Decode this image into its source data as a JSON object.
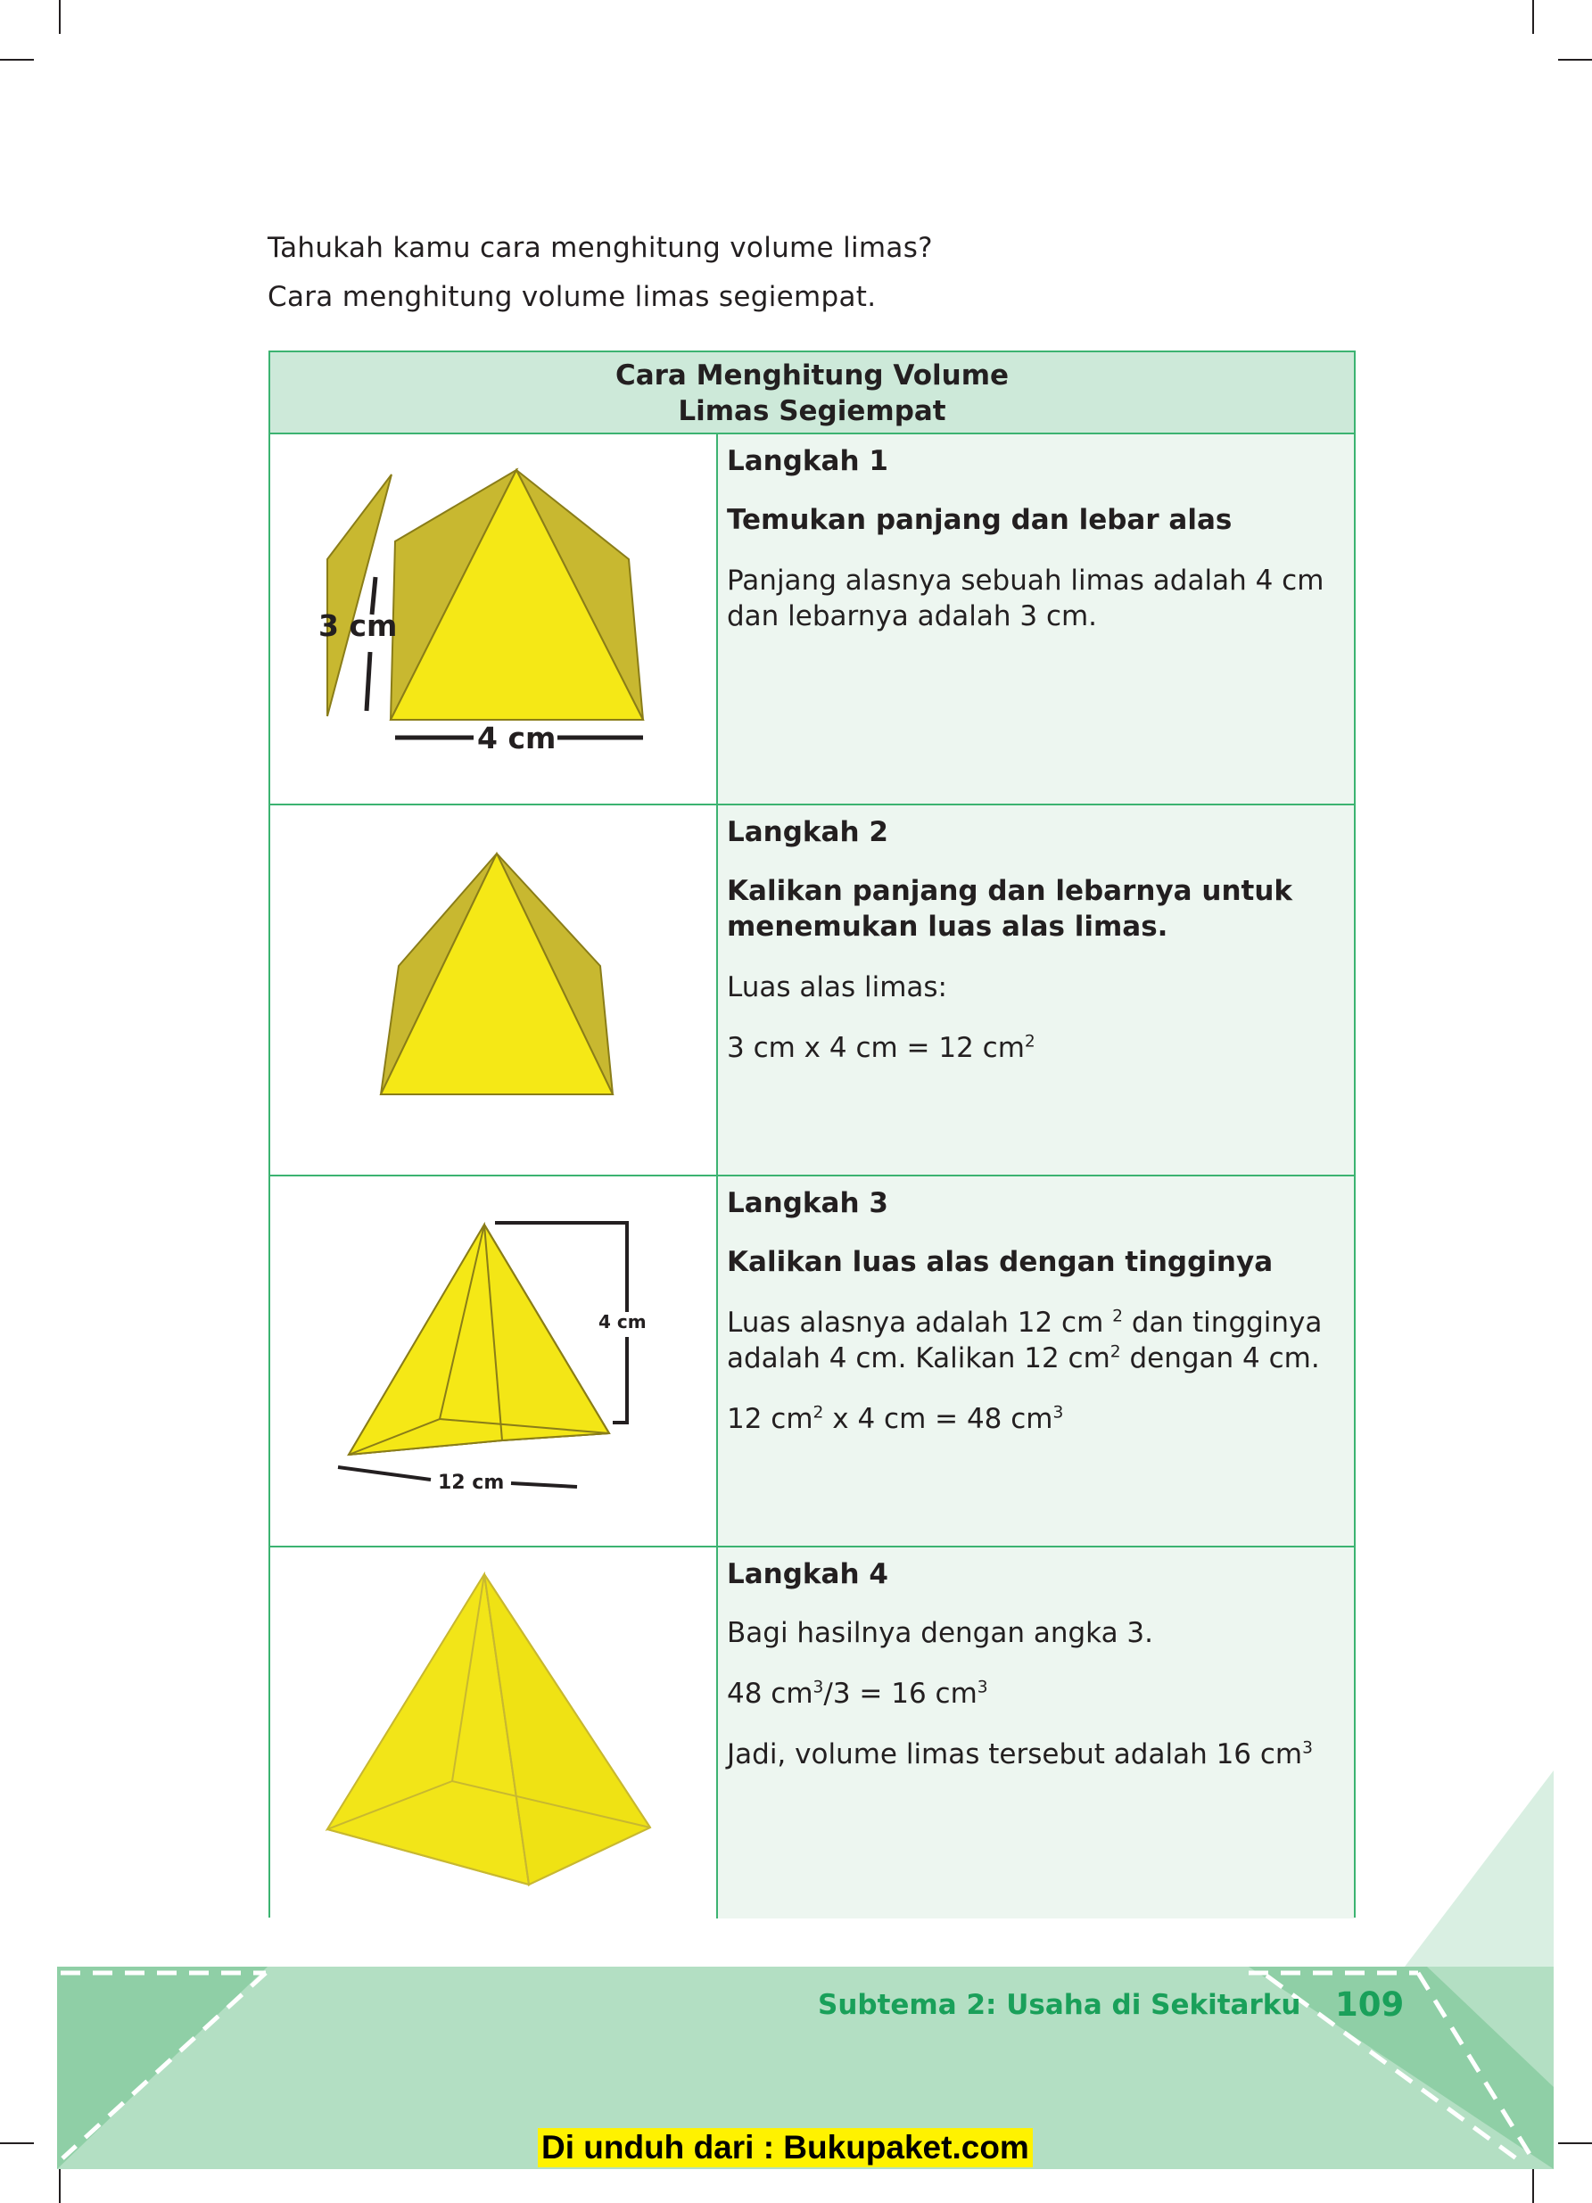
{
  "intro": {
    "question": "Tahukah kamu cara menghitung volume limas?",
    "subtitle": "Cara menghitung volume limas segiempat."
  },
  "table": {
    "header_line1": "Cara Menghitung Volume",
    "header_line2": "Limas Segiempat",
    "steps": [
      {
        "title": "Langkah 1",
        "heading": "Temukan panjang dan lebar alas",
        "body": [
          "Panjang alasnya sebuah limas adalah 4 cm dan lebarnya adalah 3 cm."
        ],
        "figure_labels": {
          "width": "4 cm",
          "depth": "3 cm"
        }
      },
      {
        "title": "Langkah 2",
        "heading": "Kalikan panjang dan lebarnya untuk menemukan luas alas limas.",
        "body": [
          "Luas alas limas:"
        ],
        "equation": {
          "text": "3 cm x 4 cm = 12 cm",
          "sup": "2"
        }
      },
      {
        "title": "Langkah 3",
        "heading": "Kalikan luas alas dengan tingginya",
        "body_a": "Luas alasnya adalah 12 cm ",
        "body_a_sup": "2",
        "body_b": " dan tingginya adalah 4 cm. Kalikan 12 cm",
        "body_b_sup": "2",
        "body_c": " dengan 4 cm.",
        "eq_a": "12 cm",
        "eq_a_sup": "2",
        "eq_b": " x 4 cm = 48 cm",
        "eq_b_sup": "3",
        "figure_labels": {
          "height": "4 cm",
          "base": "12 cm"
        }
      },
      {
        "title": "Langkah 4",
        "body": "Bagi hasilnya dengan angka 3.",
        "eq_a": "48 cm",
        "eq_a_sup": "3",
        "eq_b": "/3 = 16 cm",
        "eq_b_sup": "3",
        "conclusion": "Jadi, volume limas tersebut adalah 16 cm",
        "conclusion_sup": "3"
      }
    ]
  },
  "footer": {
    "subtema": "Subtema 2: Usaha di Sekitarku",
    "page_number": "109",
    "download_note": "Di unduh dari : Bukupaket.com"
  },
  "colors": {
    "border_green": "#3cb371",
    "header_green": "#cde9d9",
    "cell_green": "#edf6f0",
    "pyramid_yellow": "#f5e816",
    "pyramid_olive": "#c8b830",
    "footer_text": "#1aa05a",
    "banner_yellow": "#fff200"
  }
}
